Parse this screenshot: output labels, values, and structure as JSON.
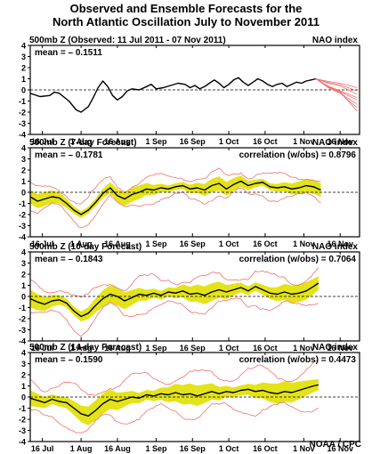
{
  "title_line1": "Observed and Ensemble Forecasts for the",
  "title_line2": "North Atlantic Oscillation July to November 2011",
  "footer": "NOAA / CPC",
  "colors": {
    "observed": "#000000",
    "spread": "#e3e319",
    "member": "#f07070",
    "zero": "#000000"
  },
  "chart_data": [
    {
      "type": "line",
      "title": "500mb Z (Observed: 11 Jul 2011 - 07 Nov 2011)",
      "right_label": "NAO index",
      "mean_label": "mean = – 0.1511",
      "correlation_label": "",
      "xticks": [
        "16 Jul",
        "1 Aug",
        "16 Aug",
        "1 Sep",
        "16 Sep",
        "1 Oct",
        "16 Oct",
        "1 Nov",
        "16 Nov"
      ],
      "xtick_day": [
        5,
        21,
        36,
        52,
        67,
        82,
        97,
        113,
        128
      ],
      "yticks": [
        4,
        3,
        2,
        1,
        0,
        -1,
        -2,
        -3,
        -4
      ],
      "ylim": [
        -4,
        4
      ],
      "xlim": [
        0,
        136
      ],
      "observed": [
        [
          0,
          -0.3
        ],
        [
          4,
          -0.6
        ],
        [
          8,
          -0.5
        ],
        [
          10,
          -0.2
        ],
        [
          12,
          -0.3
        ],
        [
          16,
          -1.0
        ],
        [
          19,
          -1.8
        ],
        [
          21,
          -2.0
        ],
        [
          24,
          -1.5
        ],
        [
          26,
          -0.7
        ],
        [
          28,
          0.2
        ],
        [
          30,
          0.8
        ],
        [
          32,
          0.3
        ],
        [
          34,
          -0.5
        ],
        [
          36,
          -0.9
        ],
        [
          38,
          -0.6
        ],
        [
          40,
          -0.1
        ],
        [
          42,
          0.1
        ],
        [
          45,
          0.0
        ],
        [
          48,
          0.3
        ],
        [
          50,
          0.5
        ],
        [
          52,
          0.1
        ],
        [
          55,
          0.2
        ],
        [
          58,
          0.4
        ],
        [
          61,
          0.6
        ],
        [
          64,
          0.5
        ],
        [
          66,
          0.2
        ],
        [
          68,
          0.4
        ],
        [
          70,
          0.1
        ],
        [
          72,
          0.3
        ],
        [
          74,
          0.6
        ],
        [
          76,
          0.9
        ],
        [
          78,
          0.6
        ],
        [
          80,
          0.2
        ],
        [
          82,
          0.5
        ],
        [
          84,
          0.9
        ],
        [
          86,
          1.1
        ],
        [
          88,
          0.7
        ],
        [
          90,
          0.4
        ],
        [
          92,
          0.7
        ],
        [
          94,
          1.0
        ],
        [
          96,
          0.8
        ],
        [
          98,
          0.5
        ],
        [
          100,
          0.3
        ],
        [
          102,
          0.5
        ],
        [
          104,
          0.6
        ],
        [
          106,
          0.3
        ],
        [
          108,
          0.5
        ],
        [
          110,
          0.7
        ],
        [
          112,
          0.6
        ],
        [
          114,
          0.8
        ],
        [
          116,
          0.9
        ],
        [
          118,
          1.0
        ]
      ],
      "forecast_start": 118,
      "forecast_members": 8,
      "forecast_end": [
        0.2,
        -0.4,
        -0.9,
        -1.3,
        -1.6,
        -0.1,
        -0.7,
        -1.9
      ]
    },
    {
      "type": "line",
      "title": "500mb Z (7-day Forecast)",
      "right_label": "NAO index",
      "mean_label": "mean = – 0.1781",
      "correlation_label": "correlation (w/obs) = 0.8796",
      "xticks": [
        "16 Jul",
        "1 Aug",
        "16 Aug",
        "1 Sep",
        "16 Sep",
        "1 Oct",
        "16 Oct",
        "1 Nov",
        "16 Nov"
      ],
      "xtick_day": [
        5,
        21,
        36,
        52,
        67,
        82,
        97,
        113,
        128
      ],
      "yticks": [
        4,
        3,
        2,
        1,
        0,
        -1,
        -2,
        -3,
        -4
      ],
      "ylim": [
        -4,
        4
      ],
      "xlim": [
        0,
        136
      ],
      "forecast": [
        [
          0,
          -0.4
        ],
        [
          3,
          -0.8
        ],
        [
          6,
          -0.6
        ],
        [
          9,
          -0.4
        ],
        [
          12,
          -0.5
        ],
        [
          15,
          -1.0
        ],
        [
          18,
          -1.6
        ],
        [
          21,
          -2.0
        ],
        [
          24,
          -1.6
        ],
        [
          27,
          -0.9
        ],
        [
          30,
          -0.1
        ],
        [
          33,
          0.4
        ],
        [
          36,
          -0.3
        ],
        [
          39,
          -0.6
        ],
        [
          42,
          -0.2
        ],
        [
          45,
          0.0
        ],
        [
          48,
          0.3
        ],
        [
          51,
          0.2
        ],
        [
          54,
          0.4
        ],
        [
          57,
          0.3
        ],
        [
          60,
          0.5
        ],
        [
          63,
          0.6
        ],
        [
          66,
          0.3
        ],
        [
          69,
          0.4
        ],
        [
          72,
          0.2
        ],
        [
          75,
          0.6
        ],
        [
          78,
          0.8
        ],
        [
          81,
          0.3
        ],
        [
          84,
          0.7
        ],
        [
          87,
          1.0
        ],
        [
          90,
          0.6
        ],
        [
          93,
          0.8
        ],
        [
          96,
          0.9
        ],
        [
          99,
          0.5
        ],
        [
          102,
          0.4
        ],
        [
          105,
          0.5
        ],
        [
          108,
          0.3
        ],
        [
          111,
          0.4
        ],
        [
          114,
          0.6
        ],
        [
          117,
          0.5
        ],
        [
          120,
          0.2
        ]
      ],
      "spread": 0.55,
      "member_spread": 1.1
    },
    {
      "type": "line",
      "title": "500mb Z (10-day Forecast)",
      "right_label": "NAO index",
      "mean_label": "mean = – 0.1843",
      "correlation_label": "correlation (w/obs) = 0.7064",
      "xticks": [
        "16 Jul",
        "1 Aug",
        "16 Aug",
        "1 Sep",
        "16 Sep",
        "1 Oct",
        "16 Oct",
        "1 Nov",
        "16 Nov"
      ],
      "xtick_day": [
        5,
        21,
        36,
        52,
        67,
        82,
        97,
        113,
        128
      ],
      "yticks": [
        4,
        3,
        2,
        1,
        0,
        -1,
        -2,
        -3,
        -4
      ],
      "ylim": [
        -4,
        4
      ],
      "xlim": [
        0,
        136
      ],
      "forecast": [
        [
          0,
          -0.2
        ],
        [
          3,
          -0.5
        ],
        [
          6,
          -0.7
        ],
        [
          9,
          -0.4
        ],
        [
          12,
          -0.3
        ],
        [
          15,
          -0.6
        ],
        [
          18,
          -1.3
        ],
        [
          21,
          -1.8
        ],
        [
          24,
          -1.5
        ],
        [
          27,
          -0.8
        ],
        [
          30,
          -0.2
        ],
        [
          33,
          0.2
        ],
        [
          36,
          0.0
        ],
        [
          39,
          -0.4
        ],
        [
          42,
          -0.1
        ],
        [
          45,
          0.2
        ],
        [
          48,
          0.1
        ],
        [
          51,
          0.3
        ],
        [
          54,
          0.1
        ],
        [
          57,
          0.4
        ],
        [
          60,
          0.3
        ],
        [
          63,
          0.5
        ],
        [
          66,
          0.2
        ],
        [
          69,
          0.3
        ],
        [
          72,
          0.1
        ],
        [
          75,
          0.4
        ],
        [
          78,
          0.6
        ],
        [
          81,
          0.4
        ],
        [
          84,
          0.6
        ],
        [
          87,
          0.8
        ],
        [
          90,
          0.5
        ],
        [
          93,
          0.9
        ],
        [
          96,
          0.6
        ],
        [
          99,
          0.3
        ],
        [
          102,
          0.2
        ],
        [
          105,
          0.4
        ],
        [
          108,
          0.2
        ],
        [
          111,
          0.3
        ],
        [
          114,
          0.5
        ],
        [
          117,
          0.9
        ],
        [
          119,
          1.2
        ]
      ],
      "spread": 0.7,
      "member_spread": 1.5
    },
    {
      "type": "line",
      "title": "500mb Z (14-day Forecast)",
      "right_label": "NAO index",
      "mean_label": "mean = – 0.1590",
      "correlation_label": "correlation (w/obs) = 0.4473",
      "xticks": [
        "16 Jul",
        "1 Aug",
        "16 Aug",
        "1 Sep",
        "16 Sep",
        "1 Oct",
        "16 Oct",
        "1 Nov",
        "16 Nov"
      ],
      "xtick_day": [
        5,
        21,
        36,
        52,
        67,
        82,
        97,
        113,
        128
      ],
      "yticks": [
        4,
        3,
        2,
        1,
        0,
        -1,
        -2,
        -3,
        -4
      ],
      "ylim": [
        -4,
        4
      ],
      "xlim": [
        0,
        136
      ],
      "forecast": [
        [
          0,
          -0.1
        ],
        [
          3,
          -0.3
        ],
        [
          6,
          -0.5
        ],
        [
          9,
          -0.2
        ],
        [
          12,
          -0.4
        ],
        [
          15,
          -0.5
        ],
        [
          18,
          -1.0
        ],
        [
          21,
          -1.5
        ],
        [
          24,
          -1.7
        ],
        [
          27,
          -1.2
        ],
        [
          30,
          -0.6
        ],
        [
          33,
          -0.2
        ],
        [
          36,
          -0.4
        ],
        [
          39,
          -0.2
        ],
        [
          42,
          0.0
        ],
        [
          45,
          -0.1
        ],
        [
          48,
          0.2
        ],
        [
          51,
          0.1
        ],
        [
          54,
          0.3
        ],
        [
          57,
          0.2
        ],
        [
          60,
          0.4
        ],
        [
          63,
          0.2
        ],
        [
          66,
          0.3
        ],
        [
          69,
          0.1
        ],
        [
          72,
          0.3
        ],
        [
          75,
          0.5
        ],
        [
          78,
          0.3
        ],
        [
          81,
          0.5
        ],
        [
          84,
          0.4
        ],
        [
          87,
          0.6
        ],
        [
          90,
          0.7
        ],
        [
          93,
          0.5
        ],
        [
          96,
          0.6
        ],
        [
          99,
          0.4
        ],
        [
          102,
          0.3
        ],
        [
          105,
          0.5
        ],
        [
          108,
          0.4
        ],
        [
          111,
          0.6
        ],
        [
          114,
          0.8
        ],
        [
          117,
          1.0
        ],
        [
          119,
          1.1
        ]
      ],
      "spread": 0.8,
      "member_spread": 1.9
    }
  ]
}
